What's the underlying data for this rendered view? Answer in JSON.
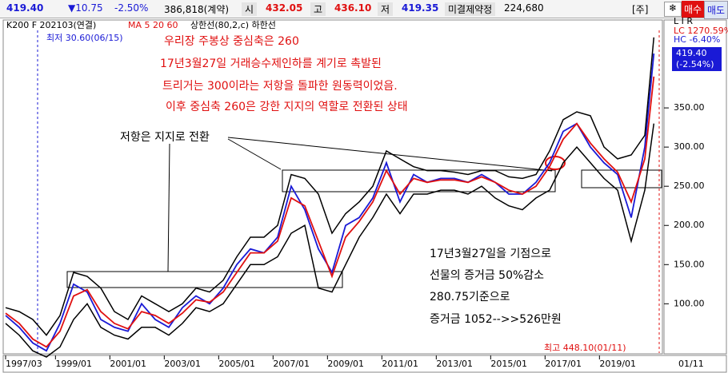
{
  "toolbar": {
    "price": "419.40",
    "change": "▼10.75",
    "change_pct": "-2.50%",
    "volume": "386,818(계약)",
    "open_label": "시",
    "open": "432.05",
    "high_label": "고",
    "high": "436.10",
    "low_label": "저",
    "low": "419.35",
    "oi_label": "미결제약정",
    "oi": "224,680",
    "unit": "[주]",
    "buy": "매수",
    "sell": "매도"
  },
  "chart_data": {
    "type": "line",
    "title": "K200 F 202103(연결)",
    "indicators": [
      "MA 5 20 60",
      "상한선(80,2,c) 하한선"
    ],
    "x": [
      "1997/03",
      "1997/09",
      "1998/03",
      "1998/09",
      "1999/03",
      "1999/09",
      "2000/03",
      "2000/09",
      "2001/03",
      "2001/09",
      "2002/03",
      "2002/09",
      "2003/03",
      "2003/09",
      "2004/03",
      "2004/09",
      "2005/03",
      "2005/09",
      "2006/03",
      "2006/09",
      "2007/03",
      "2007/09",
      "2008/03",
      "2008/09",
      "2009/03",
      "2009/09",
      "2010/03",
      "2010/09",
      "2011/03",
      "2011/09",
      "2012/03",
      "2012/09",
      "2013/03",
      "2013/09",
      "2014/03",
      "2014/09",
      "2015/03",
      "2015/09",
      "2016/03",
      "2016/09",
      "2017/03",
      "2017/09",
      "2018/03",
      "2018/09",
      "2019/03",
      "2019/09",
      "2020/03",
      "2020/09",
      "2021/01"
    ],
    "series": [
      {
        "color": "#1a1ad6",
        "values": [
          85,
          70,
          50,
          40,
          75,
          125,
          115,
          80,
          70,
          65,
          100,
          80,
          70,
          95,
          110,
          100,
          120,
          150,
          170,
          165,
          185,
          250,
          220,
          170,
          140,
          200,
          210,
          235,
          280,
          230,
          265,
          255,
          260,
          260,
          255,
          265,
          255,
          240,
          240,
          255,
          280,
          320,
          330,
          300,
          280,
          265,
          210,
          300,
          419.4
        ]
      },
      {
        "color": "#e01010",
        "values": [
          88,
          75,
          55,
          45,
          65,
          110,
          118,
          90,
          75,
          68,
          90,
          85,
          75,
          88,
          105,
          102,
          115,
          140,
          165,
          165,
          180,
          235,
          225,
          180,
          135,
          185,
          205,
          230,
          270,
          240,
          260,
          255,
          258,
          258,
          255,
          262,
          255,
          245,
          240,
          250,
          275,
          310,
          330,
          305,
          285,
          268,
          230,
          285,
          390
        ]
      },
      {
        "color": "#000000",
        "values": [
          95,
          90,
          80,
          60,
          85,
          140,
          135,
          120,
          90,
          80,
          110,
          100,
          90,
          100,
          120,
          115,
          130,
          160,
          185,
          185,
          200,
          265,
          260,
          240,
          190,
          215,
          230,
          250,
          295,
          285,
          275,
          270,
          270,
          268,
          265,
          270,
          270,
          262,
          260,
          265,
          295,
          335,
          345,
          340,
          300,
          285,
          290,
          315,
          440
        ]
      },
      {
        "color": "#000000",
        "values": [
          75,
          60,
          40,
          32,
          45,
          80,
          100,
          70,
          60,
          55,
          70,
          70,
          60,
          75,
          95,
          90,
          100,
          125,
          150,
          150,
          160,
          190,
          200,
          120,
          115,
          150,
          185,
          210,
          240,
          215,
          240,
          240,
          245,
          245,
          240,
          250,
          235,
          225,
          220,
          235,
          245,
          280,
          300,
          280,
          260,
          245,
          180,
          245,
          330
        ]
      }
    ],
    "xlim": [
      "1997/03",
      "2021/03"
    ],
    "xticks": [
      "1997/03",
      "1999/01",
      "2001/01",
      "2003/01",
      "2005/01",
      "2007/01",
      "2009/01",
      "2011/01",
      "2013/01",
      "2015/01",
      "2017/01",
      "2019/01"
    ],
    "x_end_label": "01/11",
    "ylim": [
      30,
      450
    ],
    "yticks": [
      {
        "value": 100,
        "label": "100.00"
      },
      {
        "value": 150,
        "label": "150.00"
      },
      {
        "value": 200,
        "label": "200.00"
      },
      {
        "value": 250,
        "label": "250.00"
      },
      {
        "value": 300,
        "label": "300.00"
      },
      {
        "value": 350,
        "label": "350.00"
      }
    ],
    "last_label": "419.40",
    "last_change": "(-2.54%)",
    "axis_code": "L I R",
    "lc": "LC 1270.59%",
    "hc": "HC -6.40%",
    "low_note": "최저 30.60(06/15)",
    "high_note": "최고 448.10(01/11)",
    "annotations": [
      {
        "text": "우리장 주봉상 중심축은 260",
        "color": "#e01010"
      },
      {
        "text": "17년3월27일 거래승수제인하를 계기로 촉발된",
        "color": "#e01010"
      },
      {
        "text": "트리거는 300이라는 저항을 돌파한 원동력이었음.",
        "color": "#e01010"
      },
      {
        "text": "이후 중심축 260은 강한 지지의 역할로 전환된 상태",
        "color": "#e01010"
      },
      {
        "text": "저항은 지지로 전환",
        "color": "#000000"
      },
      {
        "text": "17년3월27일을 기점으로",
        "color": "#000000"
      },
      {
        "text": "선물의 증거금 50%감소",
        "color": "#000000"
      },
      {
        "text": "280.75기준으로",
        "color": "#000000"
      },
      {
        "text": "증거금 1052-->>526만원",
        "color": "#000000"
      }
    ]
  }
}
